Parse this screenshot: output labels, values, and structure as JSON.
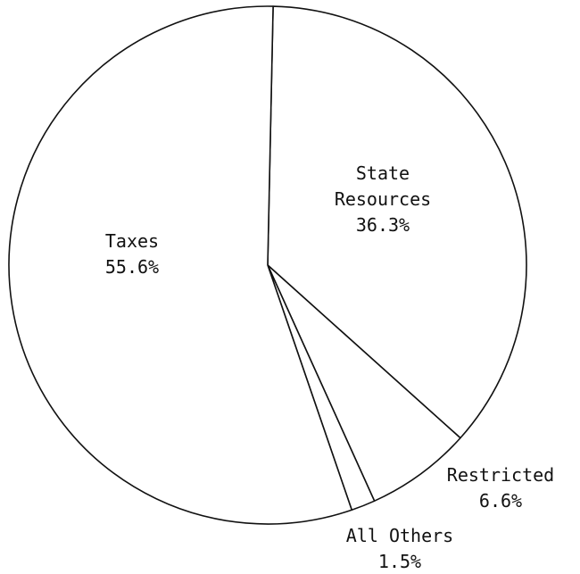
{
  "chart_data": {
    "type": "pie",
    "title": "",
    "slices": [
      {
        "name": "State Resources",
        "value": 36.3,
        "label_lines": [
          "State",
          "Resources",
          "36.3%"
        ]
      },
      {
        "name": "Restricted",
        "value": 6.6,
        "label_lines": [
          "Restricted",
          "6.6%"
        ]
      },
      {
        "name": "All Others",
        "value": 1.5,
        "label_lines": [
          "All Others",
          "1.5%"
        ]
      },
      {
        "name": "Taxes",
        "value": 55.6,
        "label_lines": [
          "Taxes",
          "55.6%"
        ]
      }
    ],
    "start": "top",
    "direction": "clockwise",
    "legend": "none"
  }
}
